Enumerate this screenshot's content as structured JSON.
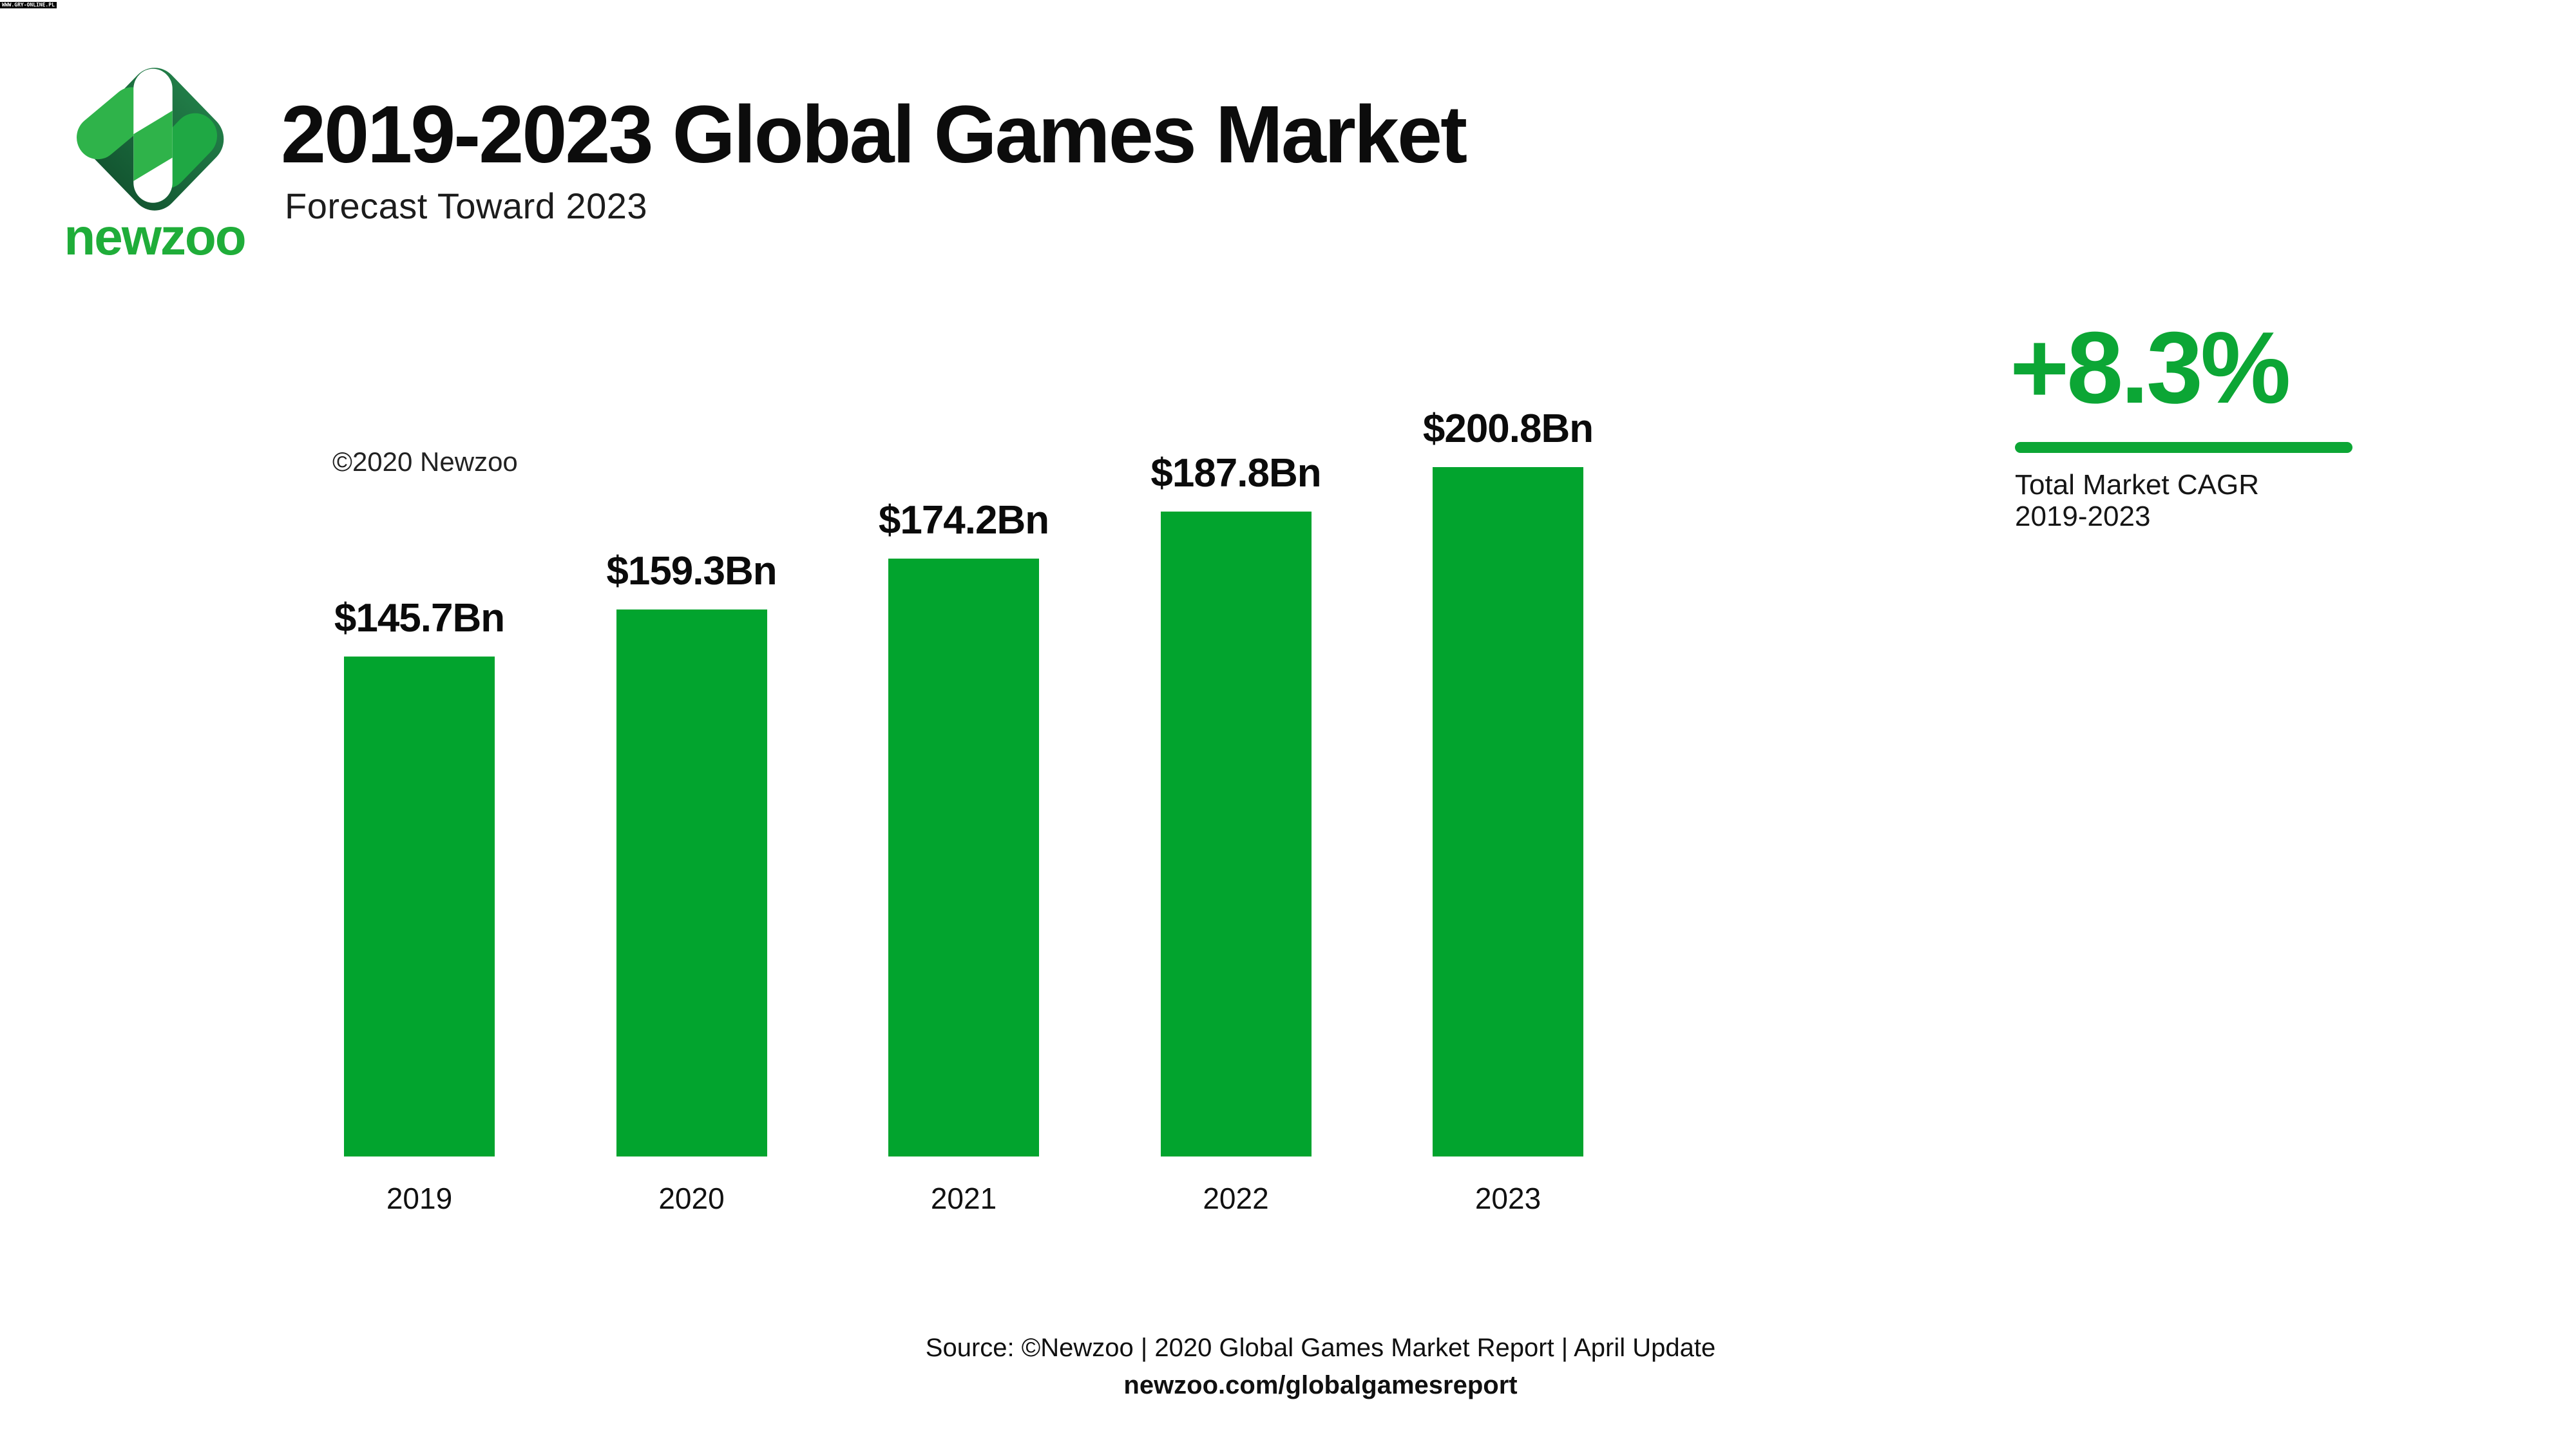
{
  "watermark": {
    "text": "WWW.GRY-ONLINE.PL",
    "bg": "#000000",
    "fg": "#ffffff"
  },
  "logo": {
    "wordmark": "newzoo"
  },
  "header": {
    "title": "2019-2023 Global Games Market",
    "subtitle": "Forecast Toward 2023"
  },
  "chart": {
    "copyright": "©2020 Newzoo"
  },
  "chart_data": {
    "type": "bar",
    "title": "2019-2023 Global Games Market",
    "subtitle": "Forecast Toward 2023",
    "categories": [
      "2019",
      "2020",
      "2021",
      "2022",
      "2023"
    ],
    "values": [
      145.7,
      159.3,
      174.2,
      187.8,
      200.8
    ],
    "value_labels": [
      "$145.7Bn",
      "$159.3Bn",
      "$174.2Bn",
      "$187.8Bn",
      "$200.8Bn"
    ],
    "unit": "USD billions",
    "bar_color": "#02a42e",
    "ylim": [
      0,
      200.8
    ],
    "grid": false,
    "legend": "none",
    "annotations": [
      "©2020 Newzoo"
    ]
  },
  "cagr": {
    "value": "+8.3%",
    "label_line1": "Total Market CAGR",
    "label_line2": "2019-2023",
    "accent_color": "#0ca635"
  },
  "footer": {
    "source": "Source: ©Newzoo | 2020 Global Games Market Report | April Update",
    "url": "newzoo.com/globalgamesreport"
  },
  "colors": {
    "background": "#ffffff",
    "bar_green": "#02a42e",
    "accent_green": "#0ca635",
    "wordmark_green": "#1fad39",
    "diamond_dark_top": "#217c47",
    "diamond_dark_bottom": "#135631",
    "capsule_bright": "#2fb34a",
    "capsule_mid": "#1fa844",
    "text_dark": "#0c0c0c"
  }
}
